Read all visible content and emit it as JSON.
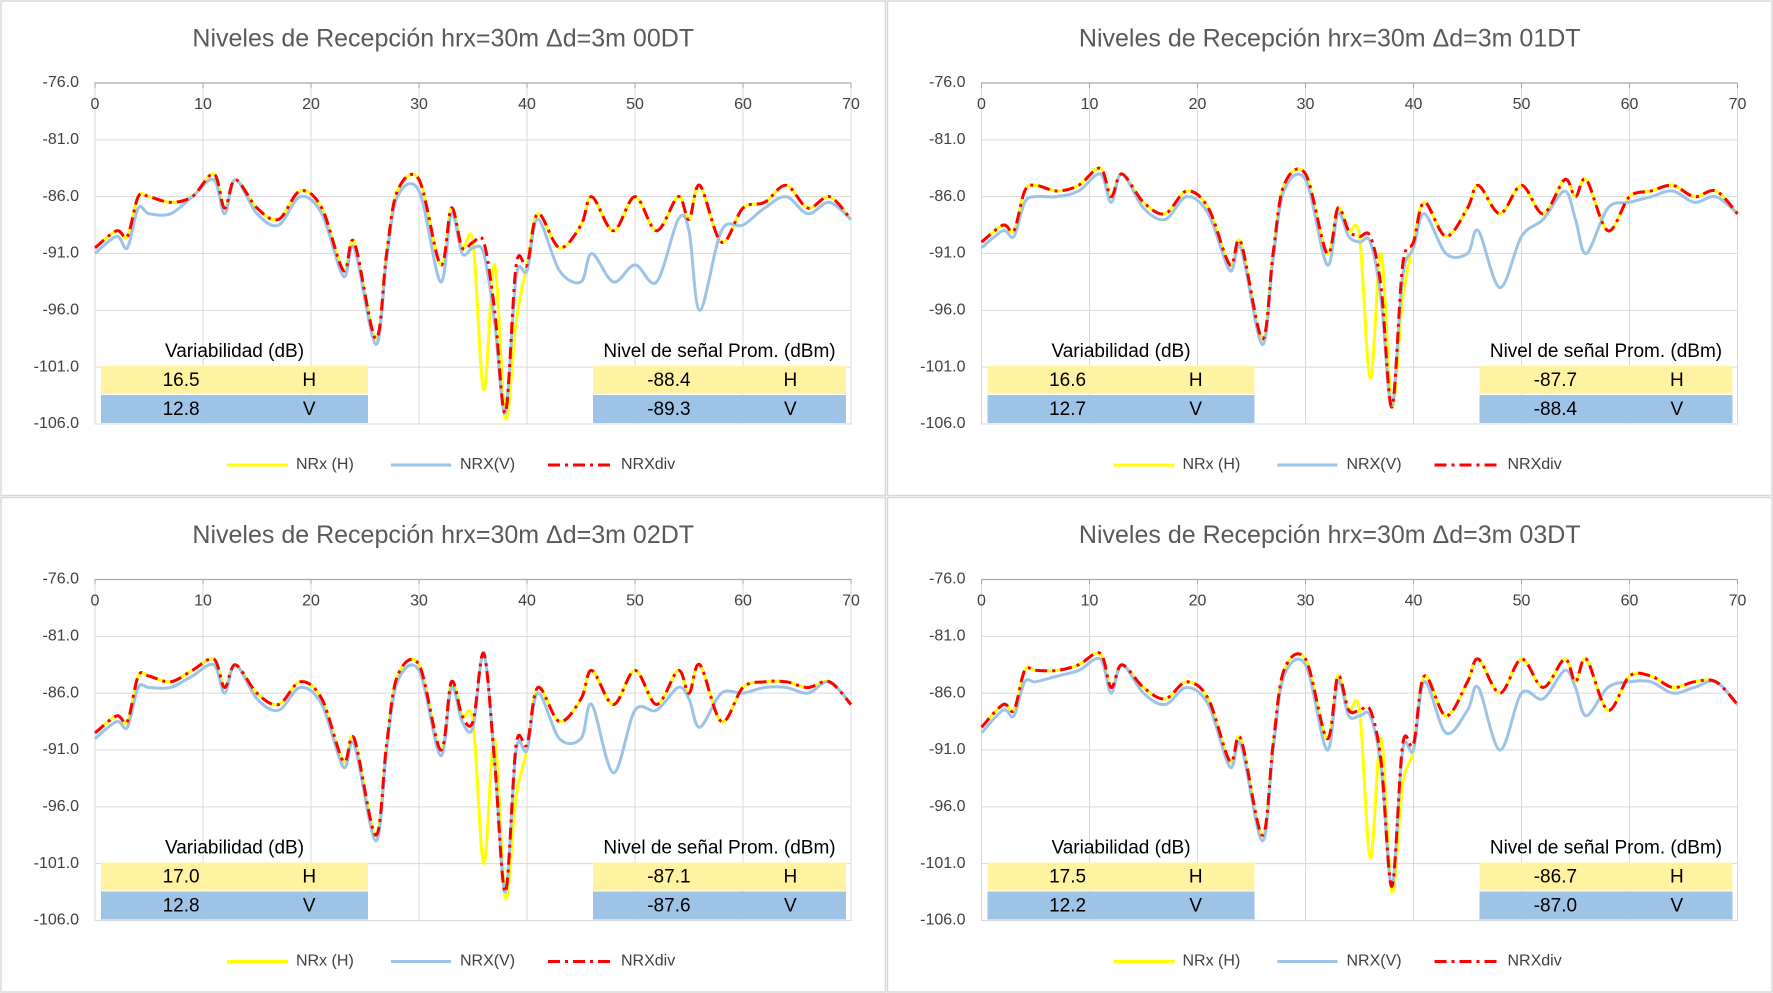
{
  "chart_data": [
    {
      "type": "line",
      "title": "Niveles de Recepción hrx=30m Δd=3m 00DT",
      "x": [
        0,
        2,
        3,
        4,
        5,
        7,
        9,
        11,
        12,
        13,
        15,
        17,
        19,
        21,
        23,
        24,
        26,
        27,
        28,
        30,
        32,
        33,
        34,
        35,
        36,
        37,
        38,
        39,
        40,
        41,
        43,
        45,
        46,
        48,
        50,
        52,
        54,
        55,
        56,
        58,
        60,
        62,
        64,
        66,
        68,
        70
      ],
      "xlim": [
        0,
        70
      ],
      "xticks": [
        0,
        10,
        20,
        30,
        40,
        50,
        60,
        70
      ],
      "ylim": [
        -106,
        -76
      ],
      "yticks": [
        {
          "value": -76,
          "label": "-76.0"
        },
        {
          "value": -81,
          "label": "-81.0"
        },
        {
          "value": -86,
          "label": "-86.0"
        },
        {
          "value": -91,
          "label": "-91.0"
        },
        {
          "value": -96,
          "label": "-96.0"
        },
        {
          "value": -101,
          "label": "-101.0"
        },
        {
          "value": -106,
          "label": "-106.0"
        }
      ],
      "grid": true,
      "series": [
        {
          "name": "NRx (H)",
          "color": "#ffff00",
          "values": [
            -90.5,
            -89,
            -89.5,
            -86,
            -86,
            -86.5,
            -86,
            -84,
            -87,
            -84.5,
            -87,
            -88,
            -85.5,
            -87,
            -92.5,
            -90,
            -98.5,
            -91,
            -85.5,
            -84.5,
            -92,
            -87,
            -90.5,
            -90,
            -103,
            -92,
            -105.5,
            -97,
            -92,
            -87.5,
            -90.5,
            -88.5,
            -86,
            -89,
            -86,
            -89,
            -86,
            -88,
            -85,
            -90,
            -87,
            -86.5,
            -85,
            -87,
            -86,
            -88
          ]
        },
        {
          "name": "NRX(V)",
          "color": "#9dc3e6",
          "values": [
            -91,
            -89.5,
            -90.5,
            -87,
            -87.5,
            -87.5,
            -86,
            -84.5,
            -87.5,
            -84.5,
            -87.5,
            -88.5,
            -86,
            -87.5,
            -93,
            -90.5,
            -99,
            -91.5,
            -86,
            -85.5,
            -93.5,
            -87.5,
            -91,
            -90.5,
            -91,
            -97,
            -105,
            -93,
            -92.5,
            -88,
            -92.5,
            -93.5,
            -91,
            -93.5,
            -92,
            -93.5,
            -88,
            -89,
            -96,
            -89,
            -88.5,
            -87,
            -86,
            -87.5,
            -86.5,
            -88
          ]
        },
        {
          "name": "NRXdiv",
          "color": "#ff0000",
          "dash": true,
          "values": [
            -90.5,
            -89,
            -89.5,
            -86,
            -86,
            -86.5,
            -86,
            -84,
            -87,
            -84.5,
            -87,
            -88,
            -85.5,
            -87,
            -92.5,
            -90,
            -98.5,
            -91,
            -85.5,
            -84.5,
            -92,
            -87,
            -90.5,
            -90,
            -90,
            -96,
            -105,
            -92,
            -92,
            -87.5,
            -90.5,
            -88.5,
            -86,
            -89,
            -86,
            -89,
            -86,
            -88,
            -85,
            -90,
            -87,
            -86.5,
            -85,
            -87,
            -86,
            -88
          ]
        }
      ],
      "tables": [
        {
          "title": "Variabilidad (dB)",
          "rows": [
            [
              "16.5",
              "H"
            ],
            [
              "12.8",
              "V"
            ]
          ]
        },
        {
          "title": "Nivel de señal Prom. (dBm)",
          "rows": [
            [
              "-88.4",
              "H"
            ],
            [
              "-89.3",
              "V"
            ]
          ]
        }
      ]
    },
    {
      "type": "line",
      "title": "Niveles de Recepción hrx=30m Δd=3m 01DT",
      "x": [
        0,
        2,
        3,
        4,
        5,
        7,
        9,
        11,
        12,
        13,
        15,
        17,
        19,
        21,
        23,
        24,
        26,
        27,
        28,
        30,
        32,
        33,
        34,
        35,
        36,
        37,
        38,
        39,
        40,
        41,
        43,
        45,
        46,
        48,
        50,
        52,
        54,
        55,
        56,
        58,
        60,
        62,
        64,
        66,
        68,
        70
      ],
      "xlim": [
        0,
        70
      ],
      "xticks": [
        0,
        10,
        20,
        30,
        40,
        50,
        60,
        70
      ],
      "ylim": [
        -106,
        -76
      ],
      "yticks": [
        {
          "value": -76,
          "label": "-76.0"
        },
        {
          "value": -81,
          "label": "-81.0"
        },
        {
          "value": -86,
          "label": "-86.0"
        },
        {
          "value": -91,
          "label": "-91.0"
        },
        {
          "value": -96,
          "label": "-96.0"
        },
        {
          "value": -101,
          "label": "-101.0"
        },
        {
          "value": -106,
          "label": "-106.0"
        }
      ],
      "grid": true,
      "series": [
        {
          "name": "NRx (H)",
          "color": "#ffff00",
          "values": [
            -90,
            -88.5,
            -89,
            -85.5,
            -85,
            -85.5,
            -85,
            -83.5,
            -86,
            -84,
            -86.5,
            -87.5,
            -85.5,
            -87,
            -92,
            -90,
            -98.5,
            -91,
            -85,
            -84,
            -91,
            -87,
            -89,
            -89.5,
            -102,
            -91,
            -104.5,
            -95,
            -90,
            -86.5,
            -89.5,
            -87,
            -85,
            -87.5,
            -85,
            -87.5,
            -84.5,
            -86,
            -84.5,
            -89,
            -86,
            -85.5,
            -85,
            -86,
            -85.5,
            -87.5
          ]
        },
        {
          "name": "NRX(V)",
          "color": "#9dc3e6",
          "values": [
            -90.5,
            -89,
            -89.5,
            -86.5,
            -86,
            -86,
            -85.5,
            -84,
            -86.5,
            -84,
            -87,
            -88,
            -86,
            -87.5,
            -92.5,
            -90.5,
            -99,
            -91.5,
            -85.5,
            -84.5,
            -92,
            -87.5,
            -89.5,
            -90,
            -90,
            -95,
            -104.5,
            -93,
            -90.5,
            -87.5,
            -91,
            -91,
            -89,
            -94,
            -89.5,
            -88,
            -85.5,
            -88,
            -91,
            -87,
            -86.5,
            -86,
            -85.5,
            -86.5,
            -86,
            -87.5
          ]
        },
        {
          "name": "NRXdiv",
          "color": "#ff0000",
          "dash": true,
          "values": [
            -90,
            -88.5,
            -89,
            -85.5,
            -85,
            -85.5,
            -85,
            -83.5,
            -86,
            -84,
            -86.5,
            -87.5,
            -85.5,
            -87,
            -92,
            -90,
            -98.5,
            -91,
            -85,
            -84,
            -91,
            -87,
            -89,
            -89.5,
            -89.5,
            -94,
            -104.5,
            -92,
            -90,
            -86.5,
            -89.5,
            -87,
            -85,
            -87.5,
            -85,
            -87.5,
            -84.5,
            -86,
            -84.5,
            -89,
            -86,
            -85.5,
            -85,
            -86,
            -85.5,
            -87.5
          ]
        }
      ],
      "tables": [
        {
          "title": "Variabilidad (dB)",
          "rows": [
            [
              "16.6",
              "H"
            ],
            [
              "12.7",
              "V"
            ]
          ]
        },
        {
          "title": "Nivel de señal Prom. (dBm)",
          "rows": [
            [
              "-87.7",
              "H"
            ],
            [
              "-88.4",
              "V"
            ]
          ]
        }
      ]
    },
    {
      "type": "line",
      "title": "Niveles de Recepción hrx=30m Δd=3m 02DT",
      "x": [
        0,
        2,
        3,
        4,
        5,
        7,
        9,
        11,
        12,
        13,
        15,
        17,
        19,
        21,
        23,
        24,
        26,
        27,
        28,
        30,
        32,
        33,
        34,
        35,
        36,
        37,
        38,
        39,
        40,
        41,
        43,
        45,
        46,
        48,
        50,
        52,
        54,
        55,
        56,
        58,
        60,
        62,
        64,
        66,
        68,
        70
      ],
      "xlim": [
        0,
        70
      ],
      "xticks": [
        0,
        10,
        20,
        30,
        40,
        50,
        60,
        70
      ],
      "ylim": [
        -106,
        -76
      ],
      "yticks": [
        {
          "value": -76,
          "label": "-76.0"
        },
        {
          "value": -81,
          "label": "-81.0"
        },
        {
          "value": -86,
          "label": "-86.0"
        },
        {
          "value": -91,
          "label": "-91.0"
        },
        {
          "value": -96,
          "label": "-96.0"
        },
        {
          "value": -101,
          "label": "-101.0"
        },
        {
          "value": -106,
          "label": "-106.0"
        }
      ],
      "grid": true,
      "series": [
        {
          "name": "NRx (H)",
          "color": "#ffff00",
          "values": [
            -89.5,
            -88,
            -88.5,
            -84.5,
            -84.5,
            -85,
            -84,
            -83,
            -85.5,
            -83.5,
            -86,
            -87,
            -85,
            -86.5,
            -92,
            -90,
            -98.5,
            -90.5,
            -84.5,
            -83.5,
            -91,
            -85,
            -88,
            -88.5,
            -101,
            -90,
            -104,
            -95,
            -91,
            -85.5,
            -88.5,
            -86.5,
            -84,
            -87,
            -84,
            -87,
            -84,
            -86,
            -83.5,
            -88.5,
            -85.5,
            -85,
            -85,
            -85.5,
            -85,
            -87
          ]
        },
        {
          "name": "NRX(V)",
          "color": "#9dc3e6",
          "values": [
            -90,
            -88.5,
            -89,
            -85.5,
            -85.5,
            -85.5,
            -84.5,
            -83.5,
            -86,
            -83.5,
            -86.5,
            -87.5,
            -85.5,
            -87,
            -92.5,
            -90.5,
            -99,
            -91,
            -85,
            -84,
            -91.5,
            -85.5,
            -88.5,
            -89,
            -82.5,
            -92,
            -103.5,
            -91,
            -91,
            -86,
            -90,
            -90,
            -87,
            -93,
            -87.5,
            -87.5,
            -85.5,
            -86.5,
            -89,
            -86,
            -86,
            -85.5,
            -85.5,
            -86,
            -85,
            -87
          ]
        },
        {
          "name": "NRXdiv",
          "color": "#ff0000",
          "dash": true,
          "values": [
            -89.5,
            -88,
            -88.5,
            -84.5,
            -84.5,
            -85,
            -84,
            -83,
            -85.5,
            -83.5,
            -86,
            -87,
            -85,
            -86.5,
            -92,
            -90,
            -98.5,
            -90.5,
            -84.5,
            -83.5,
            -91,
            -85,
            -88,
            -88.5,
            -82.5,
            -92,
            -103.5,
            -90.5,
            -90.5,
            -85.5,
            -88.5,
            -86.5,
            -84,
            -87,
            -84,
            -87,
            -84,
            -86,
            -83.5,
            -88.5,
            -85.5,
            -85,
            -85,
            -85.5,
            -85,
            -87
          ]
        }
      ],
      "tables": [
        {
          "title": "Variabilidad (dB)",
          "rows": [
            [
              "17.0",
              "H"
            ],
            [
              "12.8",
              "V"
            ]
          ]
        },
        {
          "title": "Nivel de señal Prom. (dBm)",
          "rows": [
            [
              "-87.1",
              "H"
            ],
            [
              "-87.6",
              "V"
            ]
          ]
        }
      ]
    },
    {
      "type": "line",
      "title": "Niveles de Recepción hrx=30m Δd=3m 03DT",
      "x": [
        0,
        2,
        3,
        4,
        5,
        7,
        9,
        11,
        12,
        13,
        15,
        17,
        19,
        21,
        23,
        24,
        26,
        27,
        28,
        30,
        32,
        33,
        34,
        35,
        36,
        37,
        38,
        39,
        40,
        41,
        43,
        45,
        46,
        48,
        50,
        52,
        54,
        55,
        56,
        58,
        60,
        62,
        64,
        66,
        68,
        70
      ],
      "xlim": [
        0,
        70
      ],
      "xticks": [
        0,
        10,
        20,
        30,
        40,
        50,
        60,
        70
      ],
      "ylim": [
        -106,
        -76
      ],
      "yticks": [
        {
          "value": -76,
          "label": "-76.0"
        },
        {
          "value": -81,
          "label": "-81.0"
        },
        {
          "value": -86,
          "label": "-86.0"
        },
        {
          "value": -91,
          "label": "-91.0"
        },
        {
          "value": -96,
          "label": "-96.0"
        },
        {
          "value": -101,
          "label": "-101.0"
        },
        {
          "value": -106,
          "label": "-106.0"
        }
      ],
      "grid": true,
      "series": [
        {
          "name": "NRx (H)",
          "color": "#ffff00",
          "values": [
            -89,
            -87,
            -87.5,
            -84,
            -84,
            -84,
            -83.5,
            -82.5,
            -85.5,
            -83.5,
            -85.5,
            -86.5,
            -85,
            -86.5,
            -92,
            -90,
            -98.5,
            -90.5,
            -84,
            -83,
            -90,
            -84.5,
            -87.5,
            -87.5,
            -100.5,
            -90,
            -103.5,
            -94,
            -91,
            -84.5,
            -88,
            -85,
            -83,
            -86,
            -83,
            -85.5,
            -83,
            -85,
            -83,
            -87.5,
            -84.5,
            -84.5,
            -85.5,
            -85,
            -85,
            -87
          ]
        },
        {
          "name": "NRX(V)",
          "color": "#9dc3e6",
          "values": [
            -89.5,
            -87.5,
            -88,
            -85,
            -85,
            -84.5,
            -84,
            -83,
            -86,
            -83.5,
            -86,
            -87,
            -85.5,
            -87,
            -92.5,
            -90.5,
            -99,
            -91,
            -84.5,
            -83.5,
            -91,
            -85,
            -88,
            -88,
            -88,
            -92.5,
            -103,
            -91,
            -91,
            -85,
            -89.5,
            -87.5,
            -85.5,
            -91,
            -86,
            -86.5,
            -84,
            -85.5,
            -88,
            -85.5,
            -85,
            -85,
            -86,
            -85.5,
            -85,
            -87
          ]
        },
        {
          "name": "NRXdiv",
          "color": "#ff0000",
          "dash": true,
          "values": [
            -89,
            -87,
            -87.5,
            -84,
            -84,
            -84,
            -83.5,
            -82.5,
            -85.5,
            -83.5,
            -85.5,
            -86.5,
            -85,
            -86.5,
            -92,
            -90,
            -98.5,
            -90.5,
            -84,
            -83,
            -90,
            -84.5,
            -87.5,
            -87.5,
            -87.5,
            -92,
            -103,
            -90.5,
            -90.5,
            -84.5,
            -88,
            -85,
            -83,
            -86,
            -83,
            -85.5,
            -83,
            -85,
            -83,
            -87.5,
            -84.5,
            -84.5,
            -85.5,
            -85,
            -85,
            -87
          ]
        }
      ],
      "tables": [
        {
          "title": "Variabilidad (dB)",
          "rows": [
            [
              "17.5",
              "H"
            ],
            [
              "12.2",
              "V"
            ]
          ]
        },
        {
          "title": "Nivel de señal Prom. (dBm)",
          "rows": [
            [
              "-86.7",
              "H"
            ],
            [
              "-87.0",
              "V"
            ]
          ]
        }
      ]
    }
  ]
}
